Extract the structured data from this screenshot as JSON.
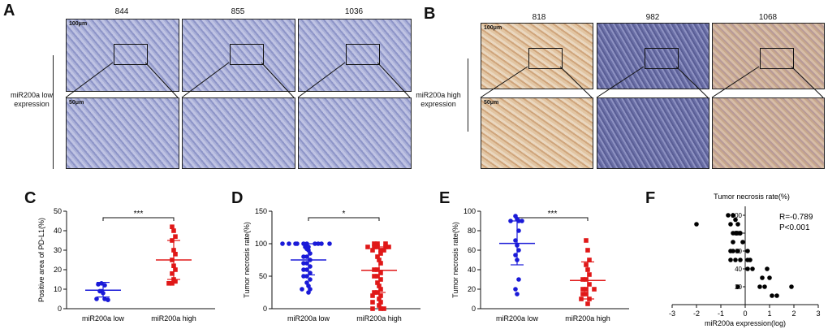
{
  "panelA": {
    "letter": "A",
    "row_label_line1": "miR200a low",
    "row_label_line2": "expression",
    "columns": [
      "844",
      "855",
      "1036"
    ],
    "scale_top": "100μm",
    "scale_bottom": "50μm"
  },
  "panelB": {
    "letter": "B",
    "row_label_line1": "miR200a high",
    "row_label_line2": "expression",
    "columns": [
      "818",
      "982",
      "1068"
    ],
    "scale_top": "100μm",
    "scale_bottom": "50μm"
  },
  "colors": {
    "low": "#1a1ad8",
    "high": "#e01818",
    "he_blue": "#9aa0cf",
    "he_brown": "#d9b48e"
  },
  "chart_data": [
    {
      "id": "C",
      "type": "scatter",
      "letter": "C",
      "ylabel": "Positive area of PD-L1(%)",
      "ylim": [
        0,
        50
      ],
      "yticks": [
        "0",
        "10",
        "20",
        "30",
        "40",
        "50"
      ],
      "categories": [
        "miR200a low",
        "miR200a high"
      ],
      "significance": "***",
      "series": [
        {
          "name": "miR200a low",
          "marker": "circle",
          "mean": 9.5,
          "sd_low": 6,
          "sd_high": 13.5,
          "values": [
            13,
            12.5,
            12,
            9,
            8,
            5,
            5,
            4.5,
            9
          ]
        },
        {
          "name": "miR200a high",
          "marker": "square",
          "mean": 25,
          "sd_low": 15,
          "sd_high": 35,
          "values": [
            42,
            40,
            37,
            35,
            30,
            28,
            25,
            22,
            20,
            18,
            15,
            14,
            13,
            13
          ]
        }
      ]
    },
    {
      "id": "D",
      "type": "scatter",
      "letter": "D",
      "ylabel": "Tumor necrosis rate(%)",
      "ylim": [
        0,
        150
      ],
      "yticks": [
        "0",
        "50",
        "100",
        "150"
      ],
      "categories": [
        "miR200a low",
        "miR200a high"
      ],
      "significance": "*",
      "series": [
        {
          "name": "miR200a low",
          "marker": "circle",
          "mean": 75,
          "sd_low": 52,
          "sd_high": 100,
          "values": [
            100,
            100,
            100,
            100,
            100,
            100,
            100,
            100,
            100,
            100,
            95,
            95,
            92,
            90,
            85,
            80,
            80,
            75,
            70,
            70,
            65,
            60,
            60,
            55,
            50,
            50,
            45,
            40,
            35,
            30,
            30,
            25
          ]
        },
        {
          "name": "miR200a high",
          "marker": "square",
          "mean": 59,
          "sd_low": 25,
          "sd_high": 95,
          "values": [
            100,
            100,
            100,
            95,
            95,
            95,
            95,
            95,
            90,
            90,
            90,
            85,
            80,
            75,
            70,
            60,
            60,
            55,
            50,
            50,
            45,
            40,
            35,
            30,
            25,
            25,
            20,
            20,
            15,
            10,
            10,
            5,
            0,
            0,
            0
          ]
        }
      ]
    },
    {
      "id": "E",
      "type": "scatter",
      "letter": "E",
      "ylabel": "Tumor necrosis rate(%)",
      "ylim": [
        0,
        100
      ],
      "yticks": [
        "0",
        "20",
        "40",
        "60",
        "80",
        "100"
      ],
      "categories": [
        "miR200a low",
        "miR200a high"
      ],
      "significance": "***",
      "series": [
        {
          "name": "miR200a low",
          "marker": "circle",
          "mean": 67,
          "sd_low": 45,
          "sd_high": 90,
          "values": [
            95,
            92,
            90,
            90,
            90,
            80,
            70,
            65,
            60,
            55,
            50,
            30,
            20,
            15
          ]
        },
        {
          "name": "miR200a high",
          "marker": "square",
          "mean": 29,
          "sd_low": 10,
          "sd_high": 48,
          "values": [
            70,
            60,
            50,
            45,
            40,
            35,
            30,
            30,
            25,
            20,
            20,
            20,
            15,
            15,
            10,
            10,
            5
          ]
        }
      ]
    },
    {
      "id": "F",
      "type": "scatter",
      "letter": "F",
      "title": "Tumor necrosis rate(%)",
      "xlabel": "miR200a expression(log)",
      "xlim": [
        -3,
        3
      ],
      "ylim": [
        0,
        110
      ],
      "xticks": [
        "-3",
        "-2",
        "-1",
        "0",
        "1",
        "2",
        "3"
      ],
      "yticks": [
        "20",
        "40",
        "60",
        "80",
        "100"
      ],
      "stat_r": "R=-0.789",
      "stat_p": "P<0.001",
      "points": [
        {
          "x": -2.0,
          "y": 90
        },
        {
          "x": -0.7,
          "y": 100
        },
        {
          "x": -0.5,
          "y": 100
        },
        {
          "x": -0.4,
          "y": 95
        },
        {
          "x": -0.6,
          "y": 90
        },
        {
          "x": -0.3,
          "y": 90
        },
        {
          "x": -0.5,
          "y": 80
        },
        {
          "x": -0.4,
          "y": 80
        },
        {
          "x": -0.3,
          "y": 80
        },
        {
          "x": -0.2,
          "y": 80
        },
        {
          "x": -0.5,
          "y": 70
        },
        {
          "x": -0.1,
          "y": 70
        },
        {
          "x": -0.6,
          "y": 60
        },
        {
          "x": -0.5,
          "y": 60
        },
        {
          "x": -0.3,
          "y": 60
        },
        {
          "x": 0.1,
          "y": 60
        },
        {
          "x": -0.6,
          "y": 50
        },
        {
          "x": -0.4,
          "y": 50
        },
        {
          "x": -0.2,
          "y": 50
        },
        {
          "x": 0.1,
          "y": 50
        },
        {
          "x": 0.2,
          "y": 50
        },
        {
          "x": 0.1,
          "y": 40
        },
        {
          "x": 0.3,
          "y": 40
        },
        {
          "x": 0.9,
          "y": 40
        },
        {
          "x": 0.7,
          "y": 30
        },
        {
          "x": 1.0,
          "y": 30
        },
        {
          "x": 0.8,
          "y": 20
        },
        {
          "x": 0.6,
          "y": 20
        },
        {
          "x": -0.3,
          "y": 20
        },
        {
          "x": 1.9,
          "y": 20
        },
        {
          "x": 1.1,
          "y": 10
        },
        {
          "x": 1.3,
          "y": 10
        }
      ]
    }
  ]
}
